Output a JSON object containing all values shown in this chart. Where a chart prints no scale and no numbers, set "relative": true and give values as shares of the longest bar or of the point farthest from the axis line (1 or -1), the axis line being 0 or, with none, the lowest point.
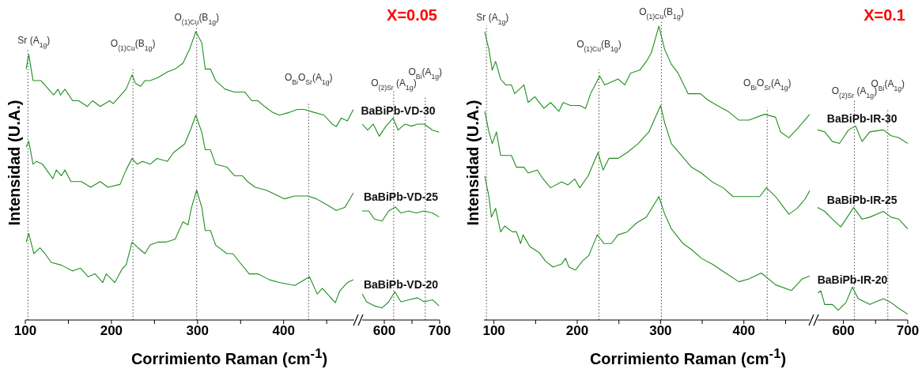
{
  "chart_data": [
    {
      "type": "line",
      "relative": true,
      "xlabel": "Corrimiento Raman (cm$^{-1}$)",
      "ylabel": "Intensidad (U.A.)",
      "xlim": [
        100,
        482
      ],
      "xticks": [
        100,
        {
          "value": 150,
          "label": null
        },
        200,
        {
          "value": 250,
          "label": null
        },
        300,
        {
          "value": 350,
          "label": null
        },
        400,
        {
          "value": 450,
          "label": null
        }
      ],
      "ref_lines": [
        {
          "axis": "x",
          "value": 103,
          "label": "Sr (A$_{1g}$)",
          "line_style": "dotted"
        },
        {
          "axis": "x",
          "value": 225,
          "label": "O$_{(1)Cu}$(B$_{1g}$)",
          "line_style": "dotted"
        },
        {
          "axis": "x",
          "value": 299,
          "label": "O$_{(1)Cu}$(B$_{1g}$)",
          "line_style": "dotted"
        },
        {
          "axis": "x",
          "value": 429,
          "label": "O$_{Bi}$O$_{Sr}$(A$_{1g}$)",
          "line_style": "dotted"
        }
      ],
      "series": [
        {
          "color": "#1f8f1f",
          "x": [
            101,
            104,
            109,
            118,
            127,
            133,
            138,
            141,
            146,
            155,
            162,
            172,
            178,
            187,
            198,
            202,
            208,
            217,
            224,
            228,
            234,
            239,
            245,
            254,
            265,
            274,
            283,
            291,
            298,
            305,
            309,
            315,
            321,
            332,
            343,
            355,
            363,
            370,
            378,
            387,
            395,
            407,
            416,
            424,
            435,
            447,
            456,
            461,
            467,
            474,
            481
          ],
          "values": [
            0.87,
            0.92,
            0.83,
            0.83,
            0.8,
            0.78,
            0.8,
            0.78,
            0.8,
            0.76,
            0.76,
            0.74,
            0.76,
            0.74,
            0.76,
            0.75,
            0.77,
            0.8,
            0.85,
            0.82,
            0.81,
            0.83,
            0.83,
            0.84,
            0.86,
            0.87,
            0.89,
            0.94,
            1.0,
            0.96,
            0.87,
            0.87,
            0.83,
            0.8,
            0.79,
            0.79,
            0.76,
            0.76,
            0.74,
            0.72,
            0.71,
            0.72,
            0.73,
            0.73,
            0.72,
            0.71,
            0.68,
            0.67,
            0.7,
            0.69,
            0.73
          ]
        },
        {
          "color": "#1f8f1f",
          "x": [
            101,
            104,
            109,
            113,
            120,
            132,
            136,
            142,
            146,
            153,
            165,
            176,
            187,
            196,
            210,
            217,
            224,
            230,
            236,
            245,
            253,
            265,
            272,
            285,
            292,
            298,
            305,
            309,
            315,
            321,
            334,
            343,
            352,
            358,
            367,
            380,
            401,
            413,
            428,
            438,
            450,
            461,
            471,
            481
          ],
          "values": [
            0.6,
            0.62,
            0.54,
            0.55,
            0.54,
            0.49,
            0.52,
            0.5,
            0.52,
            0.48,
            0.48,
            0.46,
            0.48,
            0.46,
            0.47,
            0.52,
            0.56,
            0.54,
            0.55,
            0.54,
            0.56,
            0.55,
            0.58,
            0.61,
            0.66,
            0.71,
            0.65,
            0.59,
            0.59,
            0.54,
            0.53,
            0.5,
            0.5,
            0.48,
            0.46,
            0.45,
            0.42,
            0.43,
            0.43,
            0.42,
            0.4,
            0.38,
            0.39,
            0.44
          ]
        },
        {
          "color": "#1f8f1f",
          "x": [
            101,
            104,
            110,
            117,
            123,
            130,
            142,
            155,
            164,
            173,
            181,
            190,
            194,
            204,
            213,
            217,
            224,
            231,
            239,
            245,
            254,
            263,
            274,
            283,
            289,
            293,
            299,
            305,
            309,
            315,
            321,
            334,
            341,
            349,
            360,
            370,
            383,
            395,
            413,
            430,
            439,
            445,
            454,
            460,
            465,
            474,
            481
          ],
          "values": [
            0.27,
            0.3,
            0.23,
            0.25,
            0.23,
            0.2,
            0.19,
            0.17,
            0.18,
            0.15,
            0.16,
            0.13,
            0.16,
            0.13,
            0.18,
            0.19,
            0.27,
            0.25,
            0.23,
            0.26,
            0.27,
            0.27,
            0.28,
            0.34,
            0.33,
            0.39,
            0.45,
            0.39,
            0.31,
            0.31,
            0.26,
            0.23,
            0.23,
            0.2,
            0.16,
            0.16,
            0.14,
            0.13,
            0.12,
            0.15,
            0.09,
            0.11,
            0.08,
            0.06,
            0.1,
            0.13,
            0.14
          ]
        }
      ]
    },
    {
      "type": "line",
      "relative": true,
      "title": "X=0.05",
      "xlim": [
        560,
        700
      ],
      "xticks": [
        600,
        {
          "value": 650,
          "label": null
        },
        700
      ],
      "ref_lines": [
        {
          "axis": "x",
          "value": 617,
          "label": "O$_{(2)Sr}$ (A$_{1g}$)",
          "line_style": "dotted"
        },
        {
          "axis": "x",
          "value": 674,
          "label": "O$_{Bi}$(A$_{1g}$)",
          "line_style": "dotted"
        }
      ],
      "series": [
        {
          "name": "BaBiPb-VD-30",
          "color": "#1f8f1f",
          "x": [
            560,
            570,
            580,
            591,
            603,
            616,
            625,
            637,
            649,
            660,
            672,
            687,
            699
          ],
          "values": [
            0.97,
            0.94,
            0.97,
            0.91,
            0.96,
            1.0,
            0.94,
            0.97,
            0.96,
            0.97,
            0.97,
            0.94,
            0.93
          ]
        },
        {
          "name": "BaBiPb-VD-25",
          "color": "#1f8f1f",
          "x": [
            560,
            572,
            582,
            596,
            608,
            620,
            630,
            644,
            658,
            672,
            687,
            699
          ],
          "values": [
            0.54,
            0.54,
            0.5,
            0.49,
            0.54,
            0.56,
            0.53,
            0.54,
            0.53,
            0.54,
            0.53,
            0.51
          ]
        },
        {
          "name": "BaBiPb-VD-20",
          "color": "#1f8f1f",
          "x": [
            560,
            568,
            582,
            596,
            608,
            619,
            630,
            644,
            660,
            672,
            687,
            699
          ],
          "values": [
            0.13,
            0.09,
            0.07,
            0.06,
            0.09,
            0.14,
            0.09,
            0.1,
            0.11,
            0.09,
            0.1,
            0.07
          ]
        }
      ]
    },
    {
      "type": "line",
      "relative": true,
      "xlabel": "Corrimiento Raman (cm$^{-1}$)",
      "ylabel": "Intensidad (U.A.)",
      "xlim": [
        88,
        479
      ],
      "xticks": [
        100,
        {
          "value": 150,
          "label": null
        },
        200,
        {
          "value": 250,
          "label": null
        },
        300,
        {
          "value": 350,
          "label": null
        },
        400,
        {
          "value": 450,
          "label": null
        }
      ],
      "ref_lines": [
        {
          "axis": "x",
          "value": 91,
          "label": "Sr (A$_{1g}$)",
          "line_style": "dotted"
        },
        {
          "axis": "x",
          "value": 226,
          "label": "O$_{(1)Cu}$(B$_{1g}$)",
          "line_style": "dotted"
        },
        {
          "axis": "x",
          "value": 301,
          "label": "O$_{(1)Cu}$(B$_{1g}$)",
          "line_style": "dotted"
        },
        {
          "axis": "x",
          "value": 428,
          "label": "O$_{Bi}$O$_{Sr}$(A$_{1g}$)",
          "line_style": "dotted"
        }
      ],
      "series": [
        {
          "color": "#1f8f1f",
          "x": [
            89,
            94,
            98,
            102,
            108,
            114,
            121,
            125,
            136,
            141,
            149,
            160,
            168,
            178,
            183,
            192,
            203,
            210,
            216,
            227,
            233,
            241,
            249,
            257,
            264,
            275,
            283,
            289,
            298,
            305,
            313,
            321,
            333,
            348,
            356,
            368,
            381,
            394,
            406,
            425,
            438,
            444,
            454,
            464,
            473,
            479
          ],
          "values": [
            0.98,
            0.92,
            0.85,
            0.88,
            0.82,
            0.8,
            0.8,
            0.77,
            0.8,
            0.74,
            0.76,
            0.72,
            0.74,
            0.71,
            0.74,
            0.73,
            0.73,
            0.72,
            0.77,
            0.83,
            0.8,
            0.81,
            0.82,
            0.8,
            0.84,
            0.85,
            0.88,
            0.91,
            1.0,
            0.92,
            0.87,
            0.84,
            0.77,
            0.77,
            0.75,
            0.73,
            0.71,
            0.68,
            0.68,
            0.7,
            0.69,
            0.64,
            0.62,
            0.65,
            0.68,
            0.7
          ]
        },
        {
          "color": "#1f8f1f",
          "x": [
            89,
            94,
            98,
            103,
            108,
            121,
            127,
            136,
            141,
            152,
            159,
            168,
            181,
            189,
            197,
            203,
            213,
            225,
            231,
            238,
            249,
            260,
            273,
            286,
            300,
            305,
            313,
            322,
            337,
            349,
            362,
            375,
            387,
            406,
            419,
            427,
            438,
            454,
            464,
            473,
            479
          ],
          "values": [
            0.71,
            0.64,
            0.6,
            0.64,
            0.56,
            0.56,
            0.52,
            0.52,
            0.5,
            0.51,
            0.48,
            0.45,
            0.47,
            0.46,
            0.48,
            0.45,
            0.49,
            0.57,
            0.51,
            0.55,
            0.55,
            0.57,
            0.6,
            0.64,
            0.73,
            0.67,
            0.6,
            0.57,
            0.52,
            0.5,
            0.47,
            0.45,
            0.42,
            0.42,
            0.42,
            0.45,
            0.42,
            0.36,
            0.38,
            0.41,
            0.44
          ]
        },
        {
          "color": "#1f8f1f",
          "x": [
            89,
            94,
            97,
            102,
            108,
            113,
            122,
            127,
            132,
            135,
            143,
            154,
            162,
            171,
            181,
            186,
            190,
            198,
            206,
            214,
            224,
            232,
            241,
            249,
            260,
            271,
            283,
            298,
            305,
            313,
            327,
            337,
            349,
            362,
            378,
            394,
            406,
            421,
            438,
            457,
            470,
            479
          ],
          "values": [
            0.49,
            0.42,
            0.35,
            0.38,
            0.3,
            0.32,
            0.3,
            0.3,
            0.26,
            0.29,
            0.25,
            0.23,
            0.2,
            0.18,
            0.19,
            0.21,
            0.18,
            0.17,
            0.2,
            0.22,
            0.29,
            0.26,
            0.26,
            0.29,
            0.3,
            0.33,
            0.35,
            0.42,
            0.36,
            0.31,
            0.26,
            0.24,
            0.21,
            0.19,
            0.16,
            0.13,
            0.14,
            0.16,
            0.12,
            0.1,
            0.14,
            0.15
          ]
        }
      ]
    },
    {
      "type": "line",
      "relative": true,
      "title": "X=0.1",
      "xlim": [
        560,
        700
      ],
      "xticks": [
        600,
        {
          "value": 650,
          "label": null
        },
        700
      ],
      "ref_lines": [
        {
          "axis": "x",
          "value": 617,
          "label": "O$_{(2)Sr}$ (A$_{1g}$)",
          "line_style": "dotted"
        },
        {
          "axis": "x",
          "value": 669,
          "label": "O$_{Bi}$(A$_{1g}$)",
          "line_style": "dotted"
        }
      ],
      "series": [
        {
          "name": "BaBiPb-IR-30",
          "color": "#1f8f1f",
          "x": [
            560,
            571,
            583,
            594,
            608,
            619,
            629,
            641,
            662,
            674,
            686,
            700
          ],
          "values": [
            0.98,
            0.97,
            0.92,
            0.91,
            0.98,
            1.0,
            0.92,
            0.97,
            0.98,
            0.95,
            0.94,
            0.91
          ]
        },
        {
          "name": "BaBiPb-IR-25",
          "color": "#1f8f1f",
          "x": [
            560,
            571,
            583,
            596,
            616,
            629,
            641,
            662,
            674,
            686,
            700
          ],
          "values": [
            0.58,
            0.56,
            0.52,
            0.48,
            0.58,
            0.52,
            0.53,
            0.56,
            0.53,
            0.52,
            0.47
          ]
        },
        {
          "name": "BaBiPb-IR-20",
          "color": "#1f8f1f",
          "x": [
            560,
            565,
            571,
            583,
            592,
            604,
            614,
            623,
            641,
            662,
            674,
            686,
            700
          ],
          "values": [
            0.14,
            0.15,
            0.08,
            0.08,
            0.05,
            0.09,
            0.17,
            0.11,
            0.08,
            0.11,
            0.09,
            0.06,
            0.03
          ]
        }
      ]
    }
  ]
}
